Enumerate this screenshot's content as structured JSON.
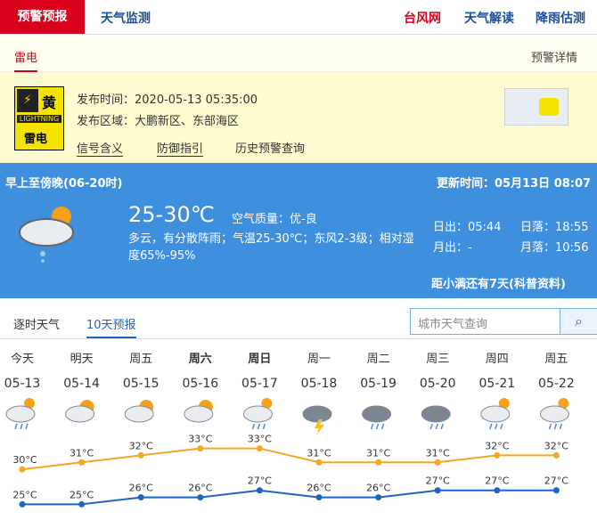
{
  "nav": {
    "tabs": [
      "预警预报",
      "天气监测"
    ],
    "links": [
      "台风网",
      "天气解读",
      "降雨估测"
    ]
  },
  "warning": {
    "tab": "雷电",
    "detail": "预警详情",
    "sign": {
      "level": "黄",
      "en": "LIGHTNING",
      "name": "雷电"
    },
    "time": "发布时间：2020-05-13 05:35:00",
    "area": "发布区域：大鹏新区、东部海区",
    "links": [
      "信号含义",
      "防御指引",
      "历史预警查询"
    ]
  },
  "today": {
    "period": "早上至傍晚(06-20时)",
    "updated": "更新时间：05月13日 08:07",
    "temp": "25-30℃",
    "air": "空气质量：优-良",
    "desc": "多云，有分散阵雨；气温25-30℃；东风2-3级；相对湿度65%-95%",
    "sunrise": "日出：05:44",
    "sunset": "日落：18:55",
    "moonrise": "月出：-",
    "moonset": "月落：10:56",
    "solar_term": "距小满还有7天(科普资料)"
  },
  "tabs": [
    "逐时天气",
    "10天预报"
  ],
  "search": "城市天气查询",
  "chart_data": {
    "type": "line",
    "categories": [
      "今天",
      "明天",
      "周五",
      "周六",
      "周日",
      "周一",
      "周二",
      "周三",
      "周四",
      "周五"
    ],
    "dates": [
      "05-13",
      "05-14",
      "05-15",
      "05-16",
      "05-17",
      "05-18",
      "05-19",
      "05-20",
      "05-21",
      "05-22"
    ],
    "ylim": [
      22,
      36
    ],
    "series": [
      {
        "color": "#f5a623",
        "values": [
          30,
          31,
          32,
          33,
          33,
          31,
          31,
          31,
          32,
          32
        ],
        "value_labels": [
          "30°C",
          "31°C",
          "32°C",
          "33°C",
          "33°C",
          "31°C",
          "31°C",
          "31°C",
          "32°C",
          "32°C"
        ]
      },
      {
        "color": "#1a66c2",
        "values": [
          25,
          25,
          26,
          26,
          27,
          26,
          26,
          27,
          27,
          27
        ],
        "value_labels": [
          "25°C",
          "25°C",
          "26°C",
          "26°C",
          "27°C",
          "26°C",
          "26°C",
          "27°C",
          "27°C",
          "27°C"
        ]
      }
    ]
  }
}
